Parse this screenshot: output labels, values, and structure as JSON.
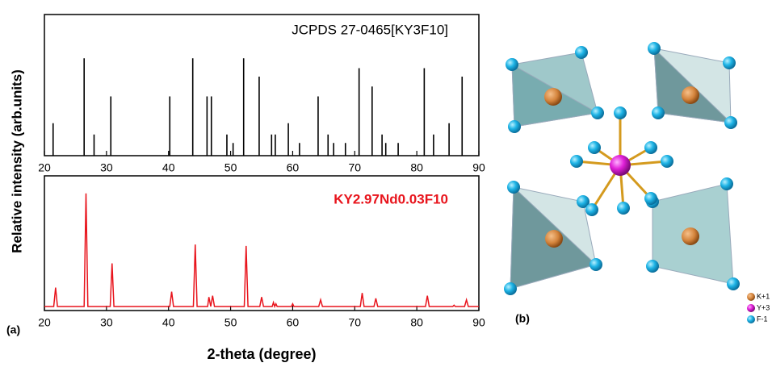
{
  "chart_data": [
    {
      "type": "stick",
      "title": "JCPDS 27-0465[KY3F10]",
      "color": "#000000",
      "x": [
        21.4,
        26.4,
        28.0,
        30.7,
        40.2,
        43.9,
        46.2,
        46.9,
        49.4,
        50.4,
        52.1,
        54.6,
        56.6,
        57.2,
        59.3,
        61.1,
        64.1,
        65.7,
        66.6,
        68.5,
        70.7,
        72.8,
        74.4,
        75.0,
        77.0,
        81.2,
        82.7,
        85.2,
        87.3
      ],
      "values": [
        23,
        69,
        15,
        42,
        42,
        69,
        42,
        42,
        15,
        9,
        69,
        56,
        15,
        15,
        23,
        9,
        42,
        15,
        9,
        9,
        62,
        49,
        15,
        9,
        9,
        62,
        15,
        23,
        56
      ],
      "xlim": [
        20,
        90
      ],
      "xticks": [
        20,
        30,
        40,
        50,
        60,
        70,
        80,
        90
      ],
      "ylim": [
        0,
        100
      ]
    },
    {
      "type": "line",
      "title": "KY2.97Nd0.03F10",
      "color": "#e8141c",
      "x": [
        20,
        21.5,
        21.8,
        22.1,
        26.4,
        26.7,
        27.0,
        30.6,
        30.9,
        31.2,
        40.2,
        40.5,
        40.8,
        44.0,
        44.3,
        44.6,
        46.3,
        46.5,
        46.8,
        47.1,
        47.4,
        52.2,
        52.5,
        52.8,
        54.7,
        55.0,
        55.3,
        56.7,
        56.9,
        57.1,
        57.3,
        57.5,
        59.8,
        60.0,
        60.2,
        64.2,
        64.5,
        64.8,
        70.9,
        71.2,
        71.5,
        73.1,
        73.4,
        73.7,
        81.4,
        81.7,
        82.0,
        85.8,
        86.0,
        86.2,
        87.7,
        88.0,
        88.3,
        90
      ],
      "values": [
        3,
        3,
        17,
        3,
        3,
        87,
        3,
        3,
        35,
        3,
        3,
        14,
        3,
        3,
        49,
        3,
        3,
        10,
        3,
        11,
        3,
        3,
        48,
        3,
        3,
        10,
        3,
        3,
        6,
        3,
        5,
        3,
        3,
        5,
        3,
        3,
        8,
        3,
        3,
        13,
        3,
        3,
        9,
        3,
        3,
        11,
        3,
        3,
        4,
        3,
        3,
        8,
        3,
        3
      ],
      "xlim": [
        20,
        90
      ],
      "xticks": [
        20,
        30,
        40,
        50,
        60,
        70,
        80,
        90
      ],
      "ylim": [
        0,
        100
      ]
    }
  ],
  "figure": {
    "ylabel": "Relative intensity (arb.units)",
    "xlabel": "2-theta (degree)",
    "panel": "(a)"
  },
  "structure": {
    "panel": "(b)",
    "legend": [
      "K+1",
      "Y+3",
      "F-1"
    ]
  }
}
